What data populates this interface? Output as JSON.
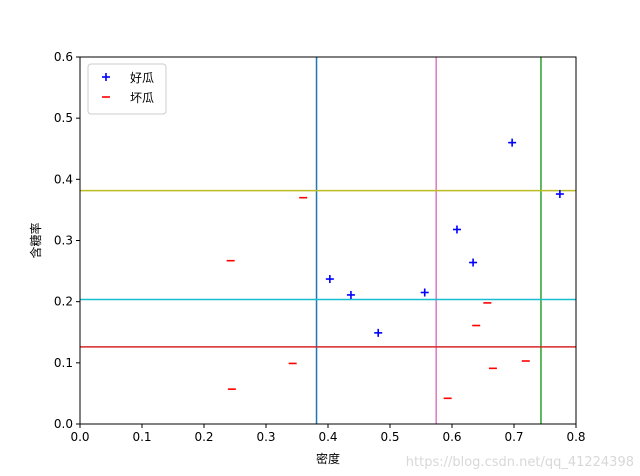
{
  "chart_data": {
    "type": "scatter",
    "xlabel": "密度",
    "ylabel": "含糖率",
    "xlim": [
      0,
      0.8
    ],
    "ylim": [
      0,
      0.6
    ],
    "xticks": [
      "0.0",
      "0.1",
      "0.2",
      "0.3",
      "0.4",
      "0.5",
      "0.6",
      "0.7",
      "0.8"
    ],
    "yticks": [
      "0.0",
      "0.1",
      "0.2",
      "0.3",
      "0.4",
      "0.5",
      "0.6"
    ],
    "grid": false,
    "legend_position": "top-left",
    "series": [
      {
        "name": "好瓜",
        "marker": "+",
        "color": "#0000ff",
        "points": [
          [
            0.697,
            0.46
          ],
          [
            0.774,
            0.376
          ],
          [
            0.634,
            0.264
          ],
          [
            0.608,
            0.318
          ],
          [
            0.556,
            0.215
          ],
          [
            0.403,
            0.237
          ],
          [
            0.481,
            0.149
          ],
          [
            0.437,
            0.211
          ]
        ]
      },
      {
        "name": "坏瓜",
        "marker": "_",
        "color": "#ff0000",
        "points": [
          [
            0.666,
            0.091
          ],
          [
            0.243,
            0.267
          ],
          [
            0.245,
            0.057
          ],
          [
            0.343,
            0.099
          ],
          [
            0.639,
            0.161
          ],
          [
            0.657,
            0.198
          ],
          [
            0.36,
            0.37
          ],
          [
            0.593,
            0.042
          ],
          [
            0.719,
            0.103
          ]
        ]
      }
    ],
    "vlines": [
      {
        "x": 0.3815,
        "color": "#1f77b4"
      },
      {
        "x": 0.5745,
        "color": "#e377c2"
      },
      {
        "x": 0.7435,
        "color": "#2ca02c"
      }
    ],
    "hlines": [
      {
        "y": 0.3815,
        "color": "#bcbd22"
      },
      {
        "y": 0.2035,
        "color": "#17becf"
      },
      {
        "y": 0.126,
        "color": "#d62728"
      }
    ]
  },
  "watermark": "https://blog.csdn.net/qq_41224398"
}
